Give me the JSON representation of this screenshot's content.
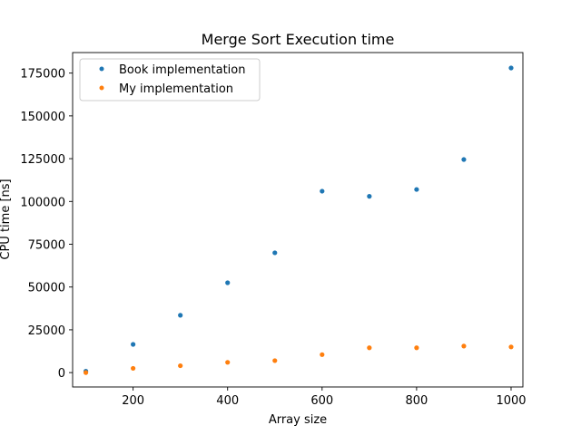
{
  "chart_data": {
    "type": "scatter",
    "title": "Merge Sort Execution time",
    "xlabel": "Array size",
    "ylabel": "CPU time [ns]",
    "xlim": [
      72,
      1025
    ],
    "ylim": [
      -8400,
      187000
    ],
    "xticks": [
      200,
      400,
      600,
      800,
      1000
    ],
    "yticks": [
      0,
      25000,
      50000,
      75000,
      100000,
      125000,
      150000,
      175000
    ],
    "grid": false,
    "legend_position": "upper-left",
    "series": [
      {
        "name": "Book implementation",
        "color": "#1f77b4",
        "x": [
          100,
          200,
          300,
          400,
          500,
          600,
          700,
          800,
          900,
          1000
        ],
        "y": [
          800,
          16500,
          33500,
          52500,
          70000,
          106000,
          103000,
          107000,
          124500,
          178000
        ]
      },
      {
        "name": "My implementation",
        "color": "#ff7f0e",
        "x": [
          100,
          200,
          300,
          400,
          500,
          600,
          700,
          800,
          900,
          1000
        ],
        "y": [
          0,
          2500,
          4000,
          6000,
          7000,
          10500,
          14500,
          14500,
          15500,
          15000
        ]
      }
    ]
  }
}
